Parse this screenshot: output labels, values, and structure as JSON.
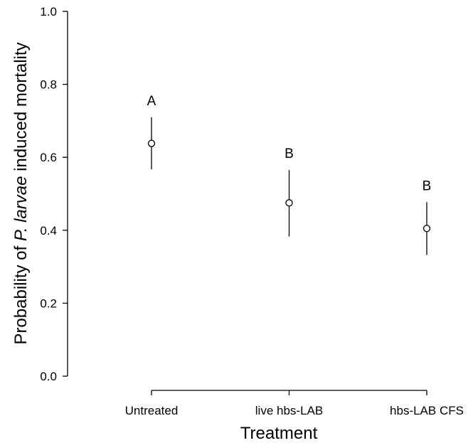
{
  "chart_data": {
    "type": "scatter",
    "categories": [
      "Untreated",
      "live hbs-LAB",
      "hbs-LAB CFS"
    ],
    "values": [
      0.638,
      0.475,
      0.405
    ],
    "lower": [
      0.567,
      0.383,
      0.332
    ],
    "upper": [
      0.71,
      0.565,
      0.477
    ],
    "significance_letters": [
      "A",
      "B",
      "B"
    ],
    "ylabel_before": "Probability of ",
    "ylabel_italic": "P. larvae",
    "ylabel_after": " induced mortality",
    "xlabel": "Treatment",
    "ylim": [
      0,
      1
    ],
    "yticks": [
      "0.0",
      "0.2",
      "0.4",
      "0.6",
      "0.8",
      "1.0"
    ],
    "grid": false
  }
}
